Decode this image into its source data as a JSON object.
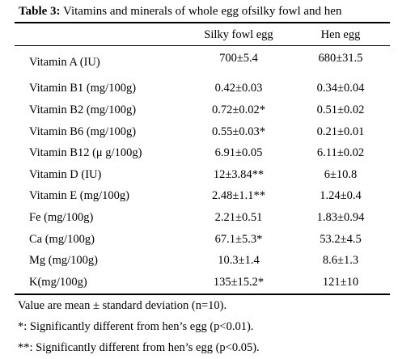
{
  "caption": {
    "label": "Table 3:",
    "text": " Vitamins and minerals  of whole egg ofsilky fowl and hen"
  },
  "table": {
    "headers": [
      "",
      "Silky fowl egg",
      "Hen egg"
    ],
    "rows": [
      {
        "name": "Vitamin A (IU)",
        "silky": "700±5.4",
        "hen": "680±31.5"
      },
      {
        "name": "Vitamin B1 (mg/100g)",
        "silky": "0.42±0.03",
        "hen": "0.34±0.04"
      },
      {
        "name": "Vitamin B2 (mg/100g)",
        "silky": "0.72±0.02*",
        "hen": "0.51±0.02"
      },
      {
        "name": "Vitamin B6 (mg/100g)",
        "silky": "0.55±0.03*",
        "hen": "0.21±0.01"
      },
      {
        "name": "Vitamin B12 (μ g/100g)",
        "silky": "6.91±0.05",
        "hen": "6.11±0.02"
      },
      {
        "name": "Vitamin D (IU)",
        "silky": "12±3.84**",
        "hen": "6±10.8"
      },
      {
        "name": "Vitamin E (mg/100g)",
        "silky": "2.48±1.1**",
        "hen": "1.24±0.4"
      },
      {
        "name": "Fe (mg/100g)",
        "silky": "2.21±0.51",
        "hen": "1.83±0.94"
      },
      {
        "name": "Ca (mg/100g)",
        "silky": "67.1±5.3*",
        "hen": "53.2±4.5"
      },
      {
        "name": "Mg (mg/100g)",
        "silky": "10.3±1.4",
        "hen": "8.6±1.3"
      },
      {
        "name": "K(mg/100g)",
        "silky": "135±15.2*",
        "hen": "121±10"
      }
    ]
  },
  "notes": [
    "Value are mean ± standard deviation (n=10).",
    "*: Significantly different from hen’s egg (p<0.01).",
    "**: Significantly different from hen’s egg (p<0.05)."
  ]
}
